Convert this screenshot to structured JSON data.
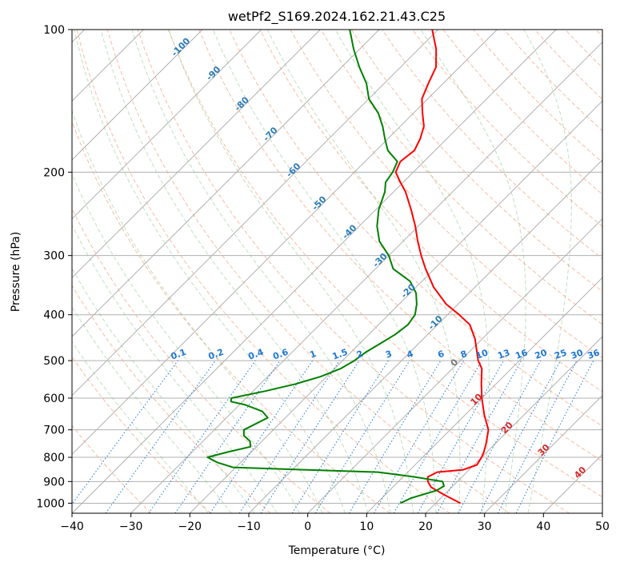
{
  "chart_data": {
    "type": "line",
    "title": "wetPf2_S169.2024.162.21.43.C25",
    "xlabel": "Temperature (°C)",
    "ylabel": "Pressure (hPa)",
    "xlim": [
      -40,
      50
    ],
    "ylim": [
      1050,
      100
    ],
    "y_scale": "log",
    "grid": true,
    "x_ticks": [
      -40,
      -30,
      -20,
      -10,
      0,
      10,
      20,
      30,
      40,
      50
    ],
    "x_tick_labels": [
      "−40",
      "−30",
      "−20",
      "−10",
      "0",
      "10",
      "20",
      "30",
      "40",
      "50"
    ],
    "y_ticks": [
      100,
      200,
      300,
      400,
      500,
      600,
      700,
      800,
      900,
      1000
    ],
    "y_tick_labels": [
      "100",
      "200",
      "300",
      "400",
      "500",
      "600",
      "700",
      "800",
      "900",
      "1000"
    ],
    "skew_degrees": 45,
    "series": [
      {
        "color": "#ff0000",
        "points": [
          [
            1000,
            24.2
          ],
          [
            960,
            20.0
          ],
          [
            925,
            16.5
          ],
          [
            900,
            15.0
          ],
          [
            880,
            14.2
          ],
          [
            860,
            15.0
          ],
          [
            850,
            19.0
          ],
          [
            830,
            20.5
          ],
          [
            800,
            20.0
          ],
          [
            780,
            19.5
          ],
          [
            750,
            18.5
          ],
          [
            700,
            16.5
          ],
          [
            650,
            13.2
          ],
          [
            600,
            10.0
          ],
          [
            560,
            7.5
          ],
          [
            520,
            5.0
          ],
          [
            500,
            3.0
          ],
          [
            450,
            -1.2
          ],
          [
            420,
            -4.5
          ],
          [
            400,
            -8.0
          ],
          [
            380,
            -12.0
          ],
          [
            350,
            -17.0
          ],
          [
            320,
            -21.5
          ],
          [
            300,
            -24.5
          ],
          [
            280,
            -27.5
          ],
          [
            260,
            -30.5
          ],
          [
            240,
            -34.0
          ],
          [
            220,
            -38.0
          ],
          [
            210,
            -40.5
          ],
          [
            200,
            -43.0
          ],
          [
            190,
            -44.0
          ],
          [
            180,
            -43.5
          ],
          [
            170,
            -44.5
          ],
          [
            160,
            -46.0
          ],
          [
            150,
            -48.5
          ],
          [
            140,
            -51.0
          ],
          [
            130,
            -52.5
          ],
          [
            120,
            -54.0
          ],
          [
            110,
            -57.0
          ],
          [
            100,
            -61.0
          ]
        ]
      },
      {
        "color": "#008000",
        "points": [
          [
            1000,
            14.0
          ],
          [
            975,
            15.0
          ],
          [
            940,
            18.0
          ],
          [
            920,
            18.5
          ],
          [
            900,
            17.5
          ],
          [
            880,
            12.0
          ],
          [
            860,
            5.0
          ],
          [
            850,
            -8.0
          ],
          [
            840,
            -20.5
          ],
          [
            820,
            -24.0
          ],
          [
            800,
            -26.5
          ],
          [
            780,
            -24.0
          ],
          [
            760,
            -21.0
          ],
          [
            740,
            -22.0
          ],
          [
            720,
            -24.0
          ],
          [
            700,
            -25.0
          ],
          [
            680,
            -24.0
          ],
          [
            660,
            -23.0
          ],
          [
            640,
            -25.0
          ],
          [
            620,
            -29.0
          ],
          [
            610,
            -32.0
          ],
          [
            600,
            -32.5
          ],
          [
            580,
            -28.0
          ],
          [
            560,
            -24.0
          ],
          [
            540,
            -21.0
          ],
          [
            520,
            -19.0
          ],
          [
            500,
            -18.0
          ],
          [
            480,
            -17.5
          ],
          [
            460,
            -16.5
          ],
          [
            440,
            -15.5
          ],
          [
            420,
            -15.0
          ],
          [
            400,
            -15.5
          ],
          [
            380,
            -17.0
          ],
          [
            360,
            -19.0
          ],
          [
            340,
            -22.0
          ],
          [
            320,
            -27.0
          ],
          [
            300,
            -30.0
          ],
          [
            280,
            -34.0
          ],
          [
            260,
            -37.0
          ],
          [
            240,
            -39.5
          ],
          [
            220,
            -41.5
          ],
          [
            210,
            -43.0
          ],
          [
            200,
            -43.5
          ],
          [
            190,
            -44.5
          ],
          [
            180,
            -48.0
          ],
          [
            170,
            -50.5
          ],
          [
            160,
            -53.0
          ],
          [
            150,
            -56.0
          ],
          [
            140,
            -60.0
          ],
          [
            130,
            -63.0
          ],
          [
            120,
            -67.0
          ],
          [
            110,
            -71.0
          ],
          [
            100,
            -75.0
          ]
        ]
      }
    ],
    "isotherm_labels": [
      "-100",
      "-90",
      "-80",
      "-70",
      "-60",
      "-50",
      "-40",
      "-30",
      "-20",
      "-10"
    ],
    "mixing_ratios": [
      "0.1",
      "0.2",
      "0.4",
      "0.6",
      "1",
      "1.5",
      "2",
      "3",
      "4",
      "6",
      "8",
      "10",
      "13",
      "16",
      "20",
      "25",
      "30",
      "36"
    ],
    "warm_isotherm_labels": [
      "0",
      "10",
      "20",
      "30",
      "40"
    ]
  }
}
